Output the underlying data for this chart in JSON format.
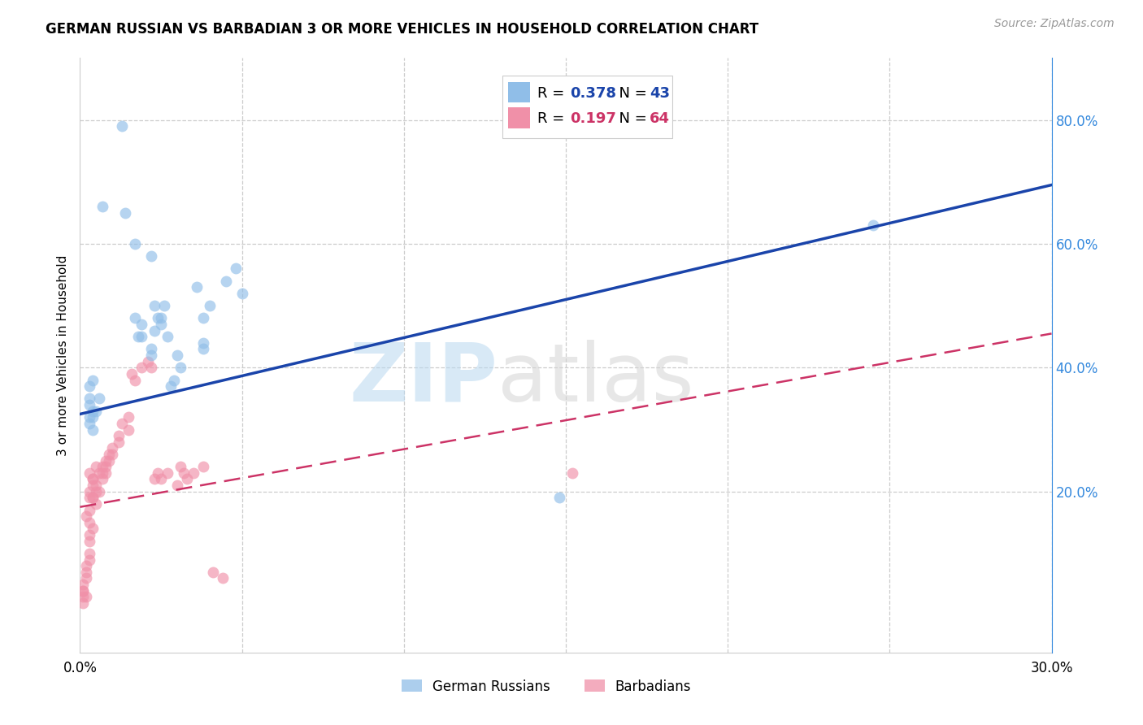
{
  "title": "GERMAN RUSSIAN VS BARBADIAN 3 OR MORE VEHICLES IN HOUSEHOLD CORRELATION CHART",
  "source": "Source: ZipAtlas.com",
  "ylabel": "3 or more Vehicles in Household",
  "xmin": 0.0,
  "xmax": 0.3,
  "ymin": -0.06,
  "ymax": 0.9,
  "xtick_vals": [
    0.0,
    0.05,
    0.1,
    0.15,
    0.2,
    0.25,
    0.3
  ],
  "xtick_labels": [
    "0.0%",
    "",
    "",
    "",
    "",
    "",
    "30.0%"
  ],
  "ytick_right_vals": [
    0.2,
    0.4,
    0.6,
    0.8
  ],
  "ytick_right_labels": [
    "20.0%",
    "40.0%",
    "60.0%",
    "80.0%"
  ],
  "legend_R1": "0.378",
  "legend_N1": "43",
  "legend_R2": "0.197",
  "legend_N2": "64",
  "blue_color": "#90BEE8",
  "pink_color": "#F090A8",
  "trend_blue_color": "#1A44AA",
  "trend_pink_color": "#CC3366",
  "blue_scatter_x": [
    0.007,
    0.014,
    0.017,
    0.022,
    0.019,
    0.022,
    0.024,
    0.023,
    0.019,
    0.018,
    0.017,
    0.022,
    0.023,
    0.026,
    0.025,
    0.027,
    0.025,
    0.028,
    0.031,
    0.029,
    0.03,
    0.038,
    0.036,
    0.038,
    0.04,
    0.038,
    0.045,
    0.048,
    0.05,
    0.006,
    0.005,
    0.004,
    0.003,
    0.003,
    0.004,
    0.004,
    0.003,
    0.003,
    0.004,
    0.003,
    0.245,
    0.013,
    0.148
  ],
  "blue_scatter_y": [
    0.66,
    0.65,
    0.6,
    0.58,
    0.45,
    0.43,
    0.48,
    0.5,
    0.47,
    0.45,
    0.48,
    0.42,
    0.46,
    0.5,
    0.47,
    0.45,
    0.48,
    0.37,
    0.4,
    0.38,
    0.42,
    0.44,
    0.53,
    0.48,
    0.5,
    0.43,
    0.54,
    0.56,
    0.52,
    0.35,
    0.33,
    0.38,
    0.35,
    0.37,
    0.32,
    0.3,
    0.32,
    0.34,
    0.33,
    0.31,
    0.63,
    0.79,
    0.19
  ],
  "pink_scatter_x": [
    0.003,
    0.003,
    0.004,
    0.005,
    0.003,
    0.002,
    0.003,
    0.004,
    0.003,
    0.003,
    0.004,
    0.004,
    0.005,
    0.003,
    0.004,
    0.005,
    0.006,
    0.005,
    0.004,
    0.006,
    0.007,
    0.007,
    0.007,
    0.008,
    0.008,
    0.008,
    0.009,
    0.009,
    0.01,
    0.01,
    0.012,
    0.012,
    0.013,
    0.015,
    0.015,
    0.016,
    0.017,
    0.019,
    0.021,
    0.022,
    0.023,
    0.024,
    0.025,
    0.027,
    0.03,
    0.031,
    0.032,
    0.033,
    0.035,
    0.038,
    0.041,
    0.044,
    0.003,
    0.003,
    0.002,
    0.002,
    0.002,
    0.001,
    0.001,
    0.002,
    0.001,
    0.001,
    0.001,
    0.152
  ],
  "pink_scatter_y": [
    0.19,
    0.2,
    0.19,
    0.18,
    0.17,
    0.16,
    0.15,
    0.14,
    0.13,
    0.12,
    0.22,
    0.21,
    0.2,
    0.23,
    0.19,
    0.24,
    0.23,
    0.21,
    0.22,
    0.2,
    0.23,
    0.24,
    0.22,
    0.25,
    0.24,
    0.23,
    0.26,
    0.25,
    0.27,
    0.26,
    0.28,
    0.29,
    0.31,
    0.3,
    0.32,
    0.39,
    0.38,
    0.4,
    0.41,
    0.4,
    0.22,
    0.23,
    0.22,
    0.23,
    0.21,
    0.24,
    0.23,
    0.22,
    0.23,
    0.24,
    0.07,
    0.06,
    0.1,
    0.09,
    0.08,
    0.07,
    0.06,
    0.05,
    0.04,
    0.03,
    0.02,
    0.03,
    0.04,
    0.23
  ],
  "blue_trend_y0": 0.325,
  "blue_trend_y1": 0.695,
  "pink_trend_y0": 0.175,
  "pink_trend_y1": 0.455
}
